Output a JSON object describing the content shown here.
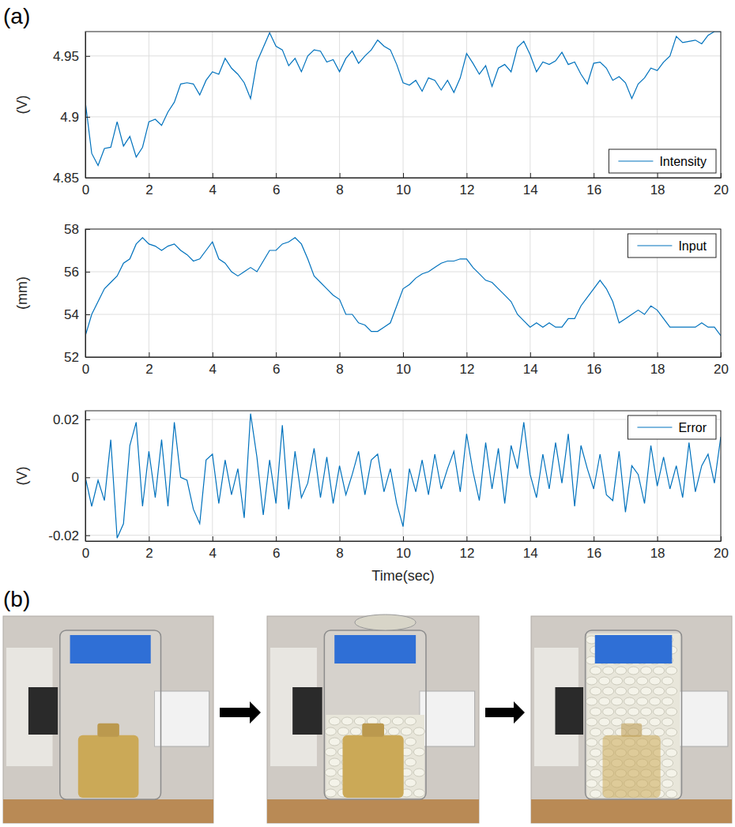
{
  "panel_labels": [
    "(a)",
    "(b)"
  ],
  "chart_data": [
    {
      "type": "line",
      "y_label": "(V)",
      "legend": "lower right",
      "grid": true,
      "xlim": [
        0,
        20
      ],
      "xticks": [
        0,
        2,
        4,
        6,
        8,
        10,
        12,
        14,
        16,
        18,
        20
      ],
      "ylim": [
        4.85,
        4.97
      ],
      "yticks": [
        4.85,
        4.9,
        4.95
      ],
      "x": [
        0,
        0.2,
        0.4,
        0.6,
        0.8,
        1,
        1.2,
        1.4,
        1.6,
        1.8,
        2,
        2.2,
        2.4,
        2.6,
        2.8,
        3,
        3.2,
        3.4,
        3.6,
        3.8,
        4,
        4.2,
        4.4,
        4.6,
        4.8,
        5,
        5.2,
        5.4,
        5.6,
        5.8,
        6,
        6.2,
        6.4,
        6.6,
        6.8,
        7,
        7.2,
        7.4,
        7.6,
        7.8,
        8,
        8.2,
        8.4,
        8.6,
        8.8,
        9,
        9.2,
        9.4,
        9.6,
        9.8,
        10,
        10.2,
        10.4,
        10.6,
        10.8,
        11,
        11.2,
        11.4,
        11.6,
        11.8,
        12,
        12.2,
        12.4,
        12.6,
        12.8,
        13,
        13.2,
        13.4,
        13.6,
        13.8,
        14,
        14.2,
        14.4,
        14.6,
        14.8,
        15,
        15.2,
        15.4,
        15.6,
        15.8,
        16,
        16.2,
        16.4,
        16.6,
        16.8,
        17,
        17.2,
        17.4,
        17.6,
        17.8,
        18,
        18.2,
        18.4,
        18.6,
        18.8,
        19,
        19.2,
        19.4,
        19.6,
        19.8,
        20
      ],
      "series": [
        {
          "name": "Intensity",
          "color": "#0072bd",
          "values": [
            4.912,
            4.87,
            4.86,
            4.874,
            4.875,
            4.896,
            4.876,
            4.884,
            4.867,
            4.875,
            4.896,
            4.898,
            4.893,
            4.904,
            4.912,
            4.927,
            4.928,
            4.927,
            4.918,
            4.93,
            4.937,
            4.935,
            4.948,
            4.94,
            4.935,
            4.928,
            4.915,
            4.945,
            4.957,
            4.969,
            4.958,
            4.955,
            4.942,
            4.948,
            4.937,
            4.95,
            4.955,
            4.954,
            4.945,
            4.947,
            4.937,
            4.948,
            4.954,
            4.944,
            4.95,
            4.955,
            4.963,
            4.958,
            4.955,
            4.943,
            4.928,
            4.926,
            4.93,
            4.921,
            4.932,
            4.93,
            4.922,
            4.93,
            4.92,
            4.932,
            4.952,
            4.944,
            4.935,
            4.942,
            4.925,
            4.94,
            4.943,
            4.937,
            4.957,
            4.962,
            4.951,
            4.937,
            4.945,
            4.943,
            4.946,
            4.953,
            4.943,
            4.945,
            4.935,
            4.927,
            4.944,
            4.945,
            4.94,
            4.93,
            4.933,
            4.928,
            4.915,
            4.927,
            4.932,
            4.94,
            4.938,
            4.945,
            4.95,
            4.966,
            4.961,
            4.962,
            4.963,
            4.96,
            4.967,
            4.97,
            4.97
          ]
        }
      ]
    },
    {
      "type": "line",
      "y_label": "(mm)",
      "legend": "upper right",
      "grid": true,
      "xlim": [
        0,
        20
      ],
      "xticks": [
        0,
        2,
        4,
        6,
        8,
        10,
        12,
        14,
        16,
        18,
        20
      ],
      "ylim": [
        52,
        58
      ],
      "yticks": [
        52,
        54,
        56,
        58
      ],
      "x": [
        0,
        0.2,
        0.4,
        0.6,
        0.8,
        1,
        1.2,
        1.4,
        1.6,
        1.8,
        2,
        2.2,
        2.4,
        2.6,
        2.8,
        3,
        3.2,
        3.4,
        3.6,
        3.8,
        4,
        4.2,
        4.4,
        4.6,
        4.8,
        5,
        5.2,
        5.4,
        5.6,
        5.8,
        6,
        6.2,
        6.4,
        6.6,
        6.8,
        7,
        7.2,
        7.4,
        7.6,
        7.8,
        8,
        8.2,
        8.4,
        8.6,
        8.8,
        9,
        9.2,
        9.4,
        9.6,
        9.8,
        10,
        10.2,
        10.4,
        10.6,
        10.8,
        11,
        11.2,
        11.4,
        11.6,
        11.8,
        12,
        12.2,
        12.4,
        12.6,
        12.8,
        13,
        13.2,
        13.4,
        13.6,
        13.8,
        14,
        14.2,
        14.4,
        14.6,
        14.8,
        15,
        15.2,
        15.4,
        15.6,
        15.8,
        16,
        16.2,
        16.4,
        16.6,
        16.8,
        17,
        17.2,
        17.4,
        17.6,
        17.8,
        18,
        18.2,
        18.4,
        18.6,
        18.8,
        19,
        19.2,
        19.4,
        19.6,
        19.8,
        20
      ],
      "series": [
        {
          "name": "Input",
          "color": "#0072bd",
          "values": [
            53.0,
            54.0,
            54.6,
            55.2,
            55.5,
            55.8,
            56.4,
            56.6,
            57.3,
            57.6,
            57.3,
            57.2,
            57.0,
            57.2,
            57.3,
            57.0,
            56.8,
            56.5,
            56.6,
            57.0,
            57.4,
            56.6,
            56.4,
            56.0,
            55.8,
            56.0,
            56.2,
            56.0,
            56.5,
            57.0,
            57.0,
            57.3,
            57.4,
            57.6,
            57.3,
            56.6,
            55.8,
            55.5,
            55.2,
            54.9,
            54.7,
            54.0,
            54.0,
            53.6,
            53.5,
            53.2,
            53.2,
            53.4,
            53.6,
            54.4,
            55.2,
            55.4,
            55.7,
            55.9,
            56.0,
            56.2,
            56.4,
            56.5,
            56.5,
            56.6,
            56.6,
            56.2,
            55.9,
            55.6,
            55.5,
            55.2,
            54.9,
            54.6,
            54.0,
            53.7,
            53.4,
            53.6,
            53.4,
            53.6,
            53.4,
            53.4,
            53.8,
            53.8,
            54.4,
            54.8,
            55.2,
            55.6,
            55.2,
            54.6,
            53.6,
            53.8,
            54.0,
            54.2,
            54.0,
            54.4,
            54.2,
            53.8,
            53.4,
            53.4,
            53.4,
            53.4,
            53.4,
            53.6,
            53.4,
            53.4,
            53.0
          ]
        }
      ]
    },
    {
      "type": "line",
      "y_label": "(V)",
      "x_label": "Time(sec)",
      "legend": "upper right",
      "grid": true,
      "xlim": [
        0,
        20
      ],
      "xticks": [
        0,
        2,
        4,
        6,
        8,
        10,
        12,
        14,
        16,
        18,
        20
      ],
      "ylim": [
        -0.022,
        0.023
      ],
      "yticks": [
        -0.02,
        0,
        0.02
      ],
      "x": [
        0,
        0.2,
        0.4,
        0.6,
        0.8,
        1,
        1.2,
        1.4,
        1.6,
        1.8,
        2,
        2.2,
        2.4,
        2.6,
        2.8,
        3,
        3.2,
        3.4,
        3.6,
        3.8,
        4,
        4.2,
        4.4,
        4.6,
        4.8,
        5,
        5.2,
        5.4,
        5.6,
        5.8,
        6,
        6.2,
        6.4,
        6.6,
        6.8,
        7,
        7.2,
        7.4,
        7.6,
        7.8,
        8,
        8.2,
        8.4,
        8.6,
        8.8,
        9,
        9.2,
        9.4,
        9.6,
        9.8,
        10,
        10.2,
        10.4,
        10.6,
        10.8,
        11,
        11.2,
        11.4,
        11.6,
        11.8,
        12,
        12.2,
        12.4,
        12.6,
        12.8,
        13,
        13.2,
        13.4,
        13.6,
        13.8,
        14,
        14.2,
        14.4,
        14.6,
        14.8,
        15,
        15.2,
        15.4,
        15.6,
        15.8,
        16,
        16.2,
        16.4,
        16.6,
        16.8,
        17,
        17.2,
        17.4,
        17.6,
        17.8,
        18,
        18.2,
        18.4,
        18.6,
        18.8,
        19,
        19.2,
        19.4,
        19.6,
        19.8,
        20
      ],
      "series": [
        {
          "name": "Error",
          "color": "#0072bd",
          "values": [
            0,
            -0.01,
            -0.001,
            -0.008,
            0.013,
            -0.021,
            -0.016,
            0.011,
            0.019,
            -0.01,
            0.009,
            -0.007,
            0.013,
            -0.01,
            0.019,
            0.0,
            -0.001,
            -0.011,
            -0.016,
            0.006,
            0.008,
            -0.009,
            0.006,
            -0.006,
            0.003,
            -0.014,
            0.022,
            0.007,
            -0.013,
            0.006,
            -0.009,
            0.018,
            -0.011,
            0.009,
            -0.007,
            -0.002,
            0.01,
            -0.007,
            0.007,
            -0.009,
            0.004,
            -0.006,
            0.001,
            0.009,
            -0.006,
            0.006,
            0.008,
            -0.005,
            0.003,
            -0.009,
            -0.017,
            0.003,
            -0.005,
            0.006,
            -0.006,
            0.008,
            -0.004,
            0.003,
            0.009,
            -0.005,
            0.015,
            0.002,
            -0.008,
            0.012,
            -0.004,
            0.01,
            -0.009,
            0.011,
            0.003,
            0.019,
            0.001,
            -0.007,
            0.008,
            -0.004,
            0.012,
            -0.002,
            0.015,
            -0.01,
            0.011,
            0.003,
            -0.004,
            0.008,
            -0.006,
            -0.008,
            0.009,
            -0.012,
            0.004,
            0.001,
            -0.009,
            0.011,
            -0.003,
            0.007,
            -0.004,
            0.004,
            -0.007,
            0.012,
            -0.005,
            0.004,
            0.008,
            -0.002,
            0.014
          ]
        }
      ]
    }
  ]
}
